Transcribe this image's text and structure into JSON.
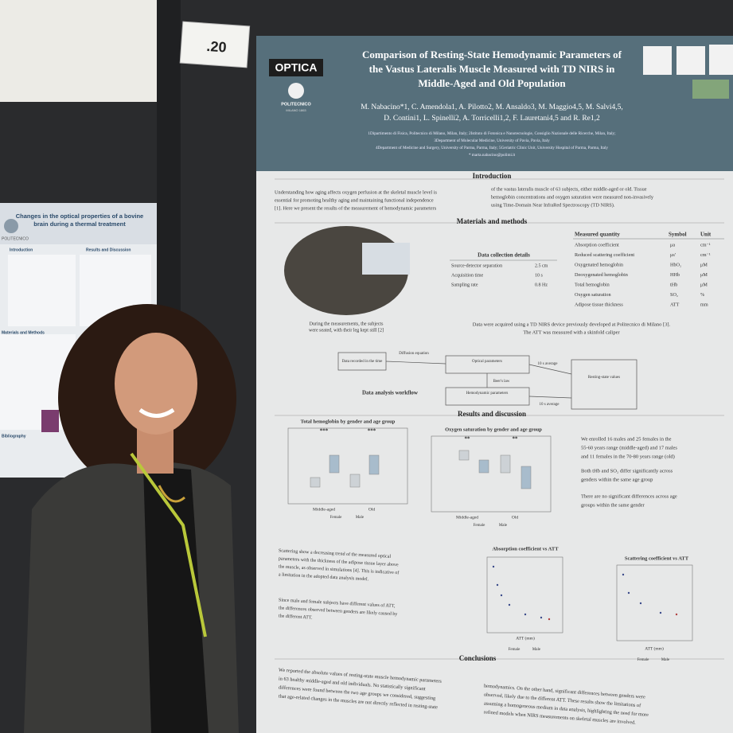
{
  "tag": ".20",
  "left_poster": {
    "title": [
      "Changes in the optical properties of a bovine",
      "brain during a thermal treatment"
    ],
    "logo": "POLITECNICO",
    "sections": [
      "Introduction",
      "Results and Discussion",
      "Materials and Methods",
      "Bibliography"
    ]
  },
  "poster": {
    "logo": "OPTICA",
    "institution": "POLITECNICO",
    "institution_sub": "MILANO 1863",
    "title": [
      "Comparison of Resting-State Hemodynamic Parameters of",
      "the Vastus Lateralis Muscle Measured with TD NIRS in",
      "Middle-Aged and Old Population"
    ],
    "authors": [
      "M. Nabacino*1, C. Amendola1, A. Pilotto2, M. Ansaldo3, M. Maggio4,5, M. Salvi4,5,",
      "D. Contini1, L. Spinelli2, A. Torricelli1,2, F. Lauretani4,5 and R. Re1,2"
    ],
    "affiliations": [
      "1Dipartimento di Fisica, Politecnico di Milano, Milan, Italy; 2Istituto di Fotonica e Nanotecnologie, Consiglio Nazionale delle Ricerche, Milan, Italy;",
      "3Department of Molecular Medicine, University of Pavia, Pavia, Italy",
      "4Department of Medicine and Surgery, University of Parma, Parma, Italy; 5Geriatric Clinic Unit, University Hospital of Parma, Parma, Italy",
      "* marta.nabacino@polimi.it"
    ],
    "headings": {
      "intro": "Introduction",
      "methods": "Materials and methods",
      "results": "Results and discussion",
      "conclusions": "Conclusions"
    },
    "intro_left": [
      "Understanding how aging affects oxygen perfusion at the skeletal muscle level is",
      "essential for promoting healthy aging and maintaining functional independence",
      "[1]. Here we present the results of the measurement of hemodynamic parameters"
    ],
    "intro_right": [
      "of the vastus lateralis muscle of 63 subjects, either middle-aged or old. Tissue",
      "hemoglobin concentrations and oxygen saturation were measured non-invasively",
      "using Time-Domain Near InfraRed Spectroscopy (TD NIRS)."
    ],
    "photo_caption": [
      "During the measurements, the subjects",
      "were seated, with their leg kept still [2]"
    ],
    "collection": {
      "title": "Data collection details",
      "rows": [
        [
          "Source-detector separation",
          "2.5 cm"
        ],
        [
          "Acquisition time",
          "10 s"
        ],
        [
          "Sampling rate",
          "0.8 Hz"
        ]
      ]
    },
    "quantities": {
      "header": [
        "Measured quantity",
        "Symbol",
        "Unit"
      ],
      "rows": [
        [
          "Absorption coefficient",
          "μa",
          "cm⁻¹"
        ],
        [
          "Reduced scattering coefficient",
          "μs'",
          "cm⁻¹"
        ],
        [
          "Oxygenated hemoglobin",
          "HbO₂",
          "μM"
        ],
        [
          "Deoxygenated hemoglobin",
          "HHb",
          "μM"
        ],
        [
          "Total hemoglobin",
          "tHb",
          "μM"
        ],
        [
          "Oxygen saturation",
          "SO₂",
          "%"
        ],
        [
          "Adipose tissue thickness",
          "ATT",
          "mm"
        ]
      ]
    },
    "device_text": [
      "Data were acquired using a TD NIRS device previously developed at Politecnico di Milano [3].",
      "The ATT was measured with a skinfold caliper"
    ],
    "workflow": {
      "label": "Data analysis workflow",
      "input": "Data recorded in the time",
      "model": "Diffusion equation",
      "optical": "Optical parameters",
      "beer": "Beer's law",
      "hemo": "Hemodynamic parameters",
      "avg1": "10 s average",
      "avg2": "10 s average",
      "output": "Resting-state values"
    },
    "chart1": {
      "title": "Total hemoglobin by gender and age group",
      "sig": [
        "***",
        "***"
      ],
      "groups": [
        "Middle-aged",
        "Old"
      ],
      "legend": [
        "Female",
        "Male"
      ]
    },
    "chart2": {
      "title": "Oxygen saturation by gender and age group",
      "sig": [
        "**",
        "**"
      ],
      "groups": [
        "Middle-aged",
        "Old"
      ],
      "legend": [
        "Female",
        "Male"
      ]
    },
    "bullets": [
      [
        "We enrolled 16 males and 25 females in the",
        "55-60 years range (middle-aged) and 17 males",
        "and 11 females in the 70-80 years range (old)"
      ],
      [
        "Both tHb and SO₂ differ significantly across",
        "genders within the same age group"
      ],
      [
        "There are no significant differences across age",
        "groups within the same gender"
      ]
    ],
    "lower_bullets": [
      [
        "Scattering show a decreasing trend of the measured optical",
        "parameters with the thickness of the adipose tissue layer above",
        "the muscle, as observed in simulations [4]. This is indicative of",
        "a limitation in the adopted data analysis model."
      ],
      [
        "Since male and female subjects have different values of ATT,",
        "the differences observed between genders are likely caused by",
        "the different ATT."
      ]
    ],
    "scatter1": {
      "title": "Absorption coefficient vs ATT",
      "xlabel": "ATT (mm)",
      "legend": [
        "Female",
        "Male"
      ]
    },
    "scatter2": {
      "title": "Scattering coefficient vs ATT",
      "xlabel": "ATT (mm)",
      "legend": [
        "Female",
        "Male"
      ]
    },
    "conclusions_left": [
      "We reported the absolute values of resting-state muscle hemodynamic parameters",
      "in 63 healthy middle-aged and old individuals. No statistically significant",
      "differences were found between the two age groups we considered, suggesting",
      "that age-related changes in the muscles are not directly reflected in resting-state"
    ],
    "conclusions_right": [
      "hemodynamics. On the other hand, significant differences between genders were",
      "observed, likely due to the different ATT. These results show the limitations of",
      "assuming a homogeneous medium in data analysis, highlighting the need for more",
      "refined models when NIRS measurements on skeletal muscles are involved."
    ]
  }
}
